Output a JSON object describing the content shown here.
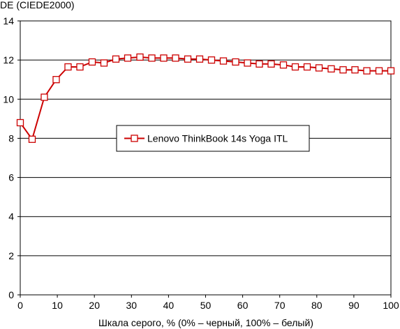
{
  "chart_data": {
    "type": "line",
    "title": "",
    "ylabel": "DE (CIEDE2000)",
    "xlabel": "Шкала серого, % (0% – черный, 100% – белый)",
    "xlim": [
      0,
      100
    ],
    "ylim": [
      0,
      14
    ],
    "x_ticks": [
      0,
      10,
      20,
      30,
      40,
      50,
      60,
      70,
      80,
      90,
      100
    ],
    "y_ticks": [
      0,
      2,
      4,
      6,
      8,
      10,
      12,
      14
    ],
    "grid": "horizontal",
    "legend_position": "center",
    "series": [
      {
        "name": "Lenovo ThinkBook 14s Yoga ITL",
        "color": "#cc0000",
        "marker": "square-open",
        "x": [
          0,
          3.2,
          6.5,
          9.7,
          12.9,
          16.1,
          19.4,
          22.6,
          25.8,
          29.0,
          32.3,
          35.5,
          38.7,
          41.9,
          45.2,
          48.4,
          51.6,
          54.8,
          58.1,
          61.3,
          64.5,
          67.7,
          71.0,
          74.2,
          77.4,
          80.6,
          83.9,
          87.1,
          90.3,
          93.5,
          96.8,
          100
        ],
        "y": [
          8.8,
          7.95,
          10.1,
          11.0,
          11.65,
          11.65,
          11.9,
          11.85,
          12.05,
          12.1,
          12.15,
          12.1,
          12.1,
          12.1,
          12.05,
          12.05,
          12.0,
          11.95,
          11.9,
          11.85,
          11.8,
          11.8,
          11.75,
          11.65,
          11.65,
          11.6,
          11.55,
          11.5,
          11.5,
          11.45,
          11.45,
          11.45
        ]
      }
    ]
  }
}
